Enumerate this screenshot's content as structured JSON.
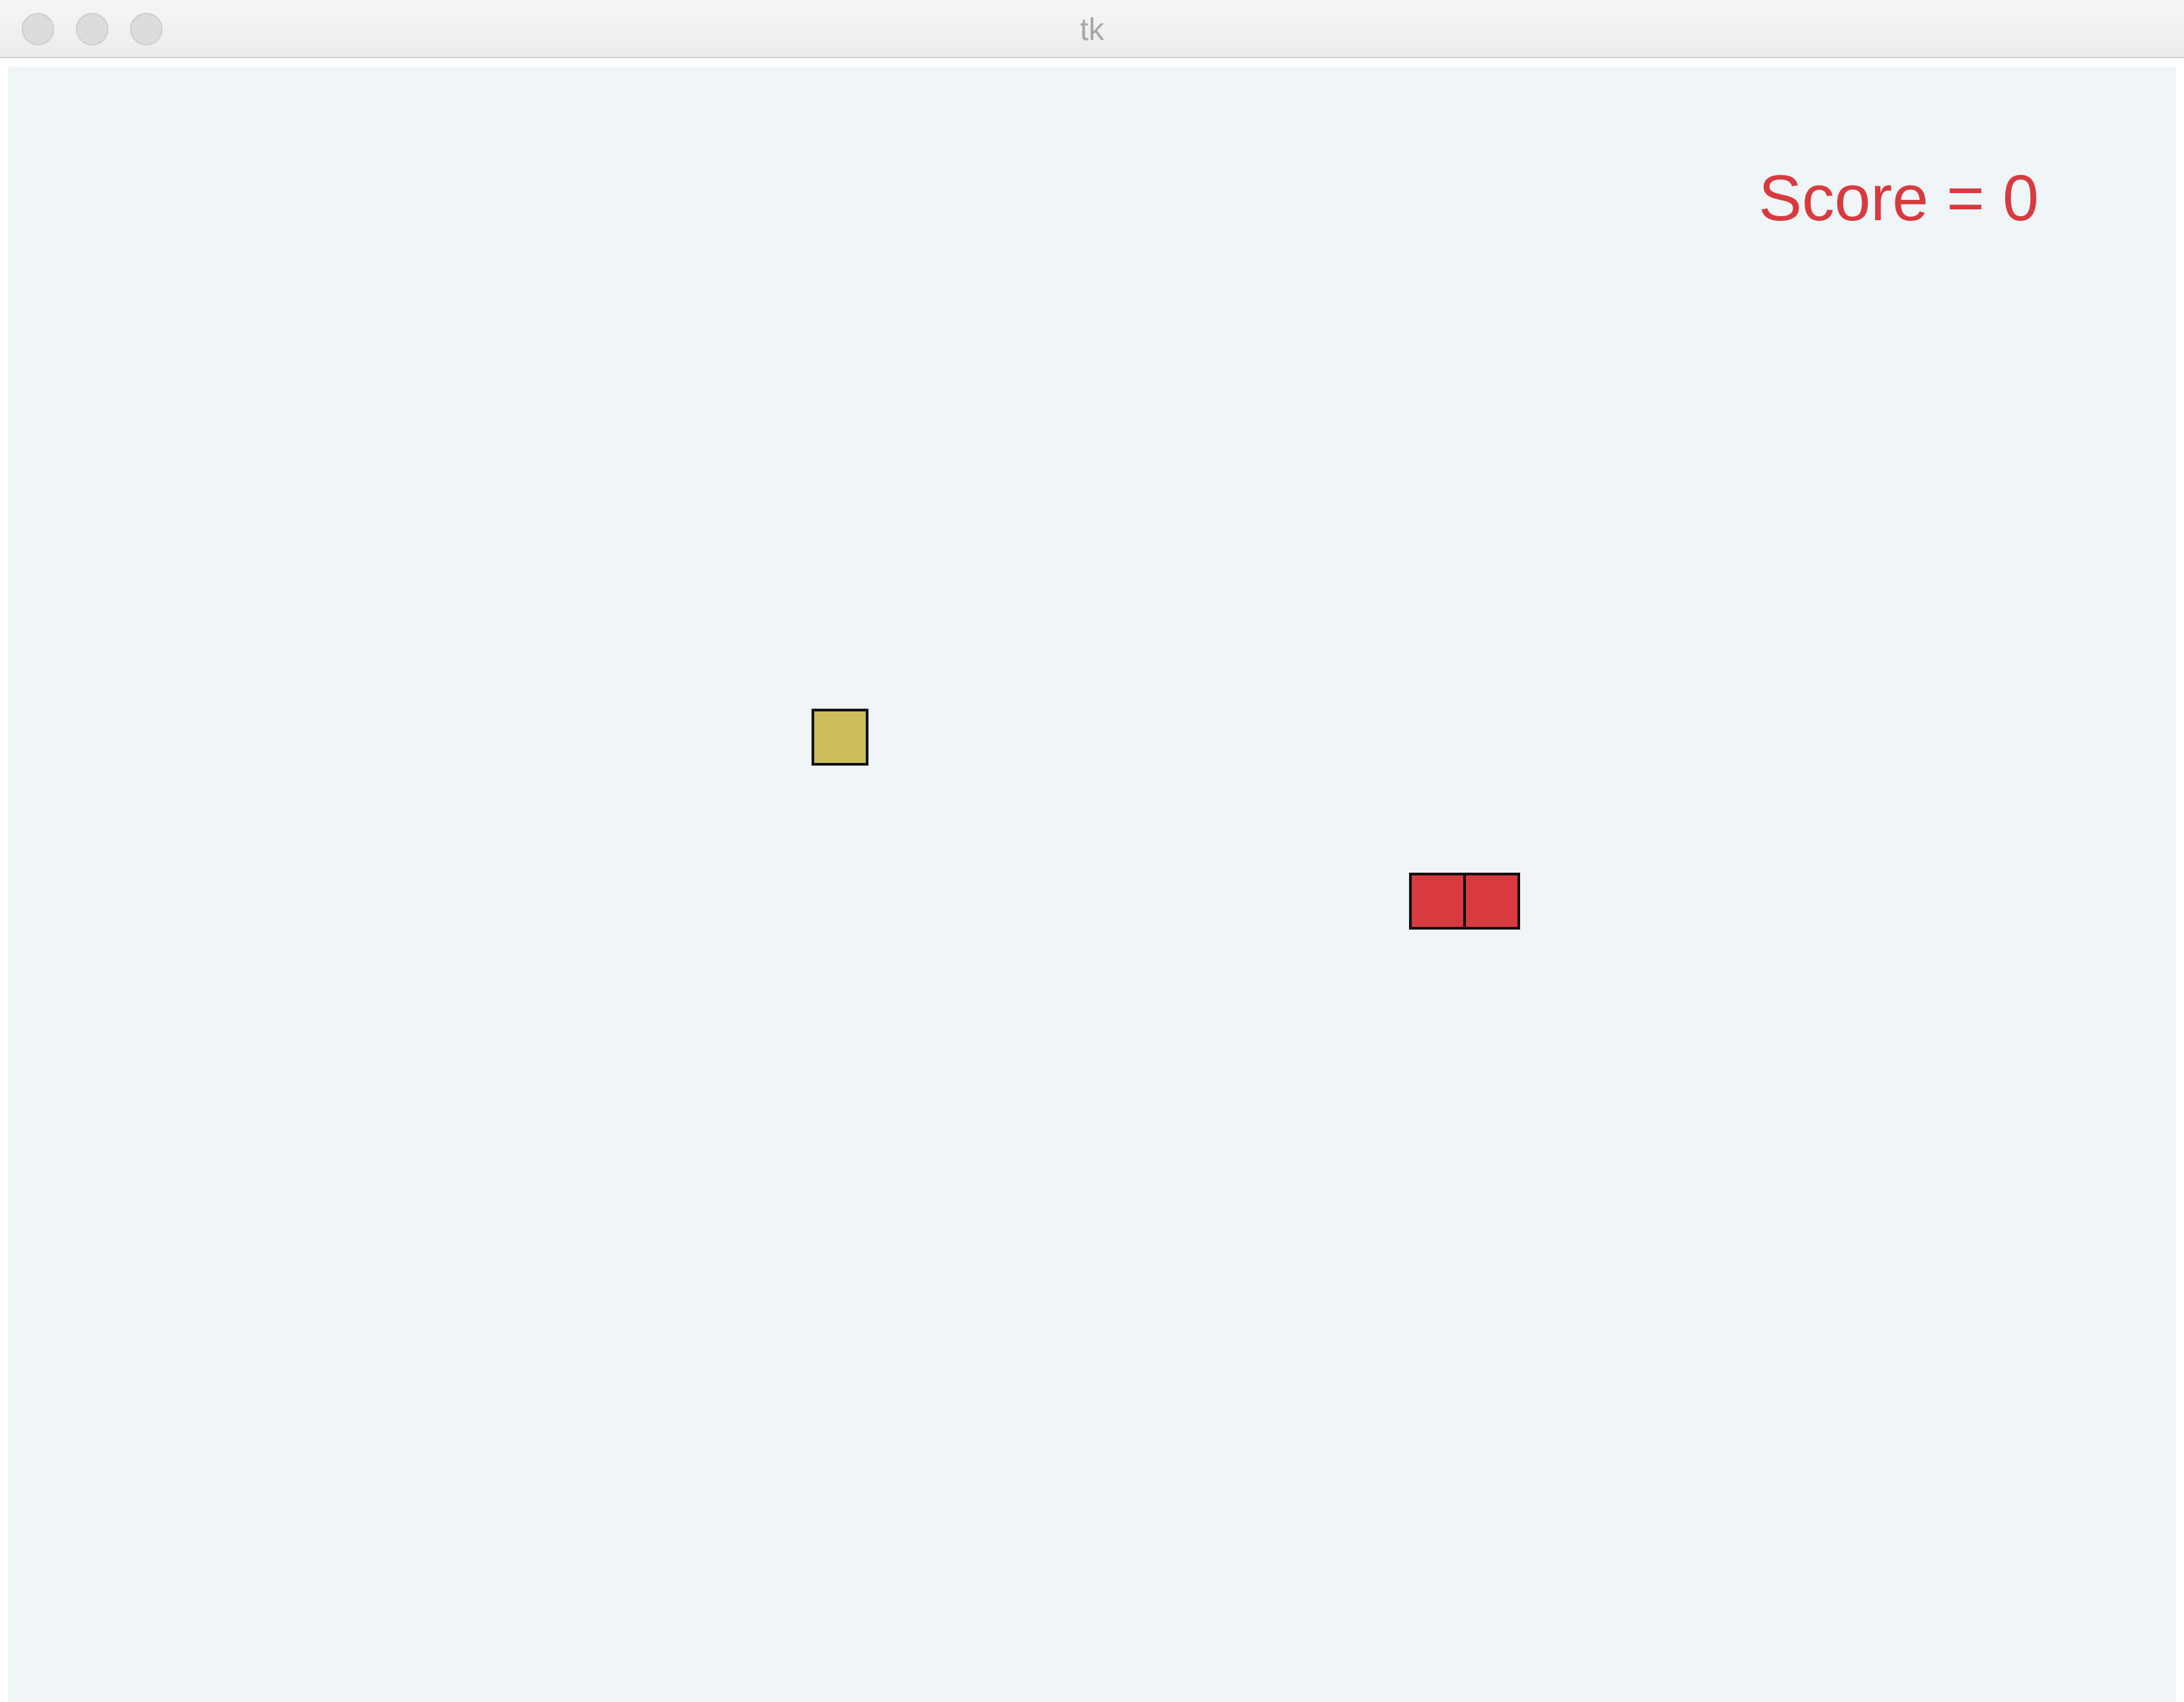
{
  "window": {
    "title": "tk"
  },
  "game": {
    "score_text": "Score = 0",
    "score_color": "#d83a3f",
    "food_color": "#cdbd5c",
    "snake_color": "#d83a3f",
    "background_color": "#f0f5f8",
    "snake_length": 2
  }
}
